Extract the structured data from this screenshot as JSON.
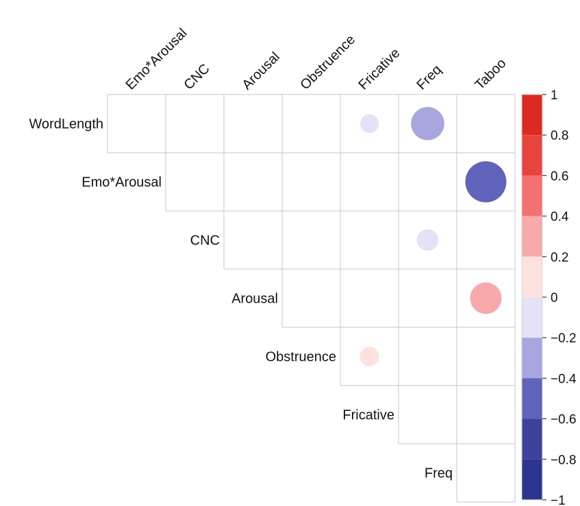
{
  "chart_data": {
    "type": "heatmap",
    "subtype": "correlation-upper-triangle-circles",
    "rows": [
      "WordLength",
      "Emo*Arousal",
      "CNC",
      "Arousal",
      "Obstruence",
      "Fricative",
      "Freq"
    ],
    "columns": [
      "Emo*Arousal",
      "CNC",
      "Arousal",
      "Obstruence",
      "Fricative",
      "Freq",
      "Taboo"
    ],
    "values": [
      {
        "row": "WordLength",
        "col": "Fricative",
        "value": -0.12
      },
      {
        "row": "WordLength",
        "col": "Freq",
        "value": -0.38
      },
      {
        "row": "Emo*Arousal",
        "col": "Taboo",
        "value": -0.58
      },
      {
        "row": "CNC",
        "col": "Freq",
        "value": -0.16
      },
      {
        "row": "Arousal",
        "col": "Taboo",
        "value": 0.34
      },
      {
        "row": "Obstruence",
        "col": "Fricative",
        "value": 0.13
      }
    ],
    "colorbar": {
      "range": [
        -1,
        1
      ],
      "ticks": [
        "1",
        "0.8",
        "0.6",
        "0.4",
        "0.2",
        "0",
        "−0.2",
        "−0.4",
        "−0.6",
        "−0.8",
        "−1"
      ],
      "tick_values": [
        1,
        0.8,
        0.6,
        0.4,
        0.2,
        0,
        -0.2,
        -0.4,
        -0.6,
        -0.8,
        -1
      ],
      "bands": [
        {
          "from": 0.8,
          "to": 1,
          "color": "#dc2a23"
        },
        {
          "from": 0.6,
          "to": 0.8,
          "color": "#e74440"
        },
        {
          "from": 0.4,
          "to": 0.6,
          "color": "#f57070"
        },
        {
          "from": 0.2,
          "to": 0.4,
          "color": "#f8a9ab"
        },
        {
          "from": 0,
          "to": 0.2,
          "color": "#fde2de"
        },
        {
          "from": -0.2,
          "to": 0,
          "color": "#e4e2f6"
        },
        {
          "from": -0.4,
          "to": -0.2,
          "color": "#a7a6df"
        },
        {
          "from": -0.6,
          "to": -0.4,
          "color": "#6063bc"
        },
        {
          "from": -0.8,
          "to": -0.6,
          "color": "#3d429b"
        },
        {
          "from": -1,
          "to": -0.8,
          "color": "#2c3592"
        }
      ],
      "placement": "right"
    },
    "grid": true
  }
}
